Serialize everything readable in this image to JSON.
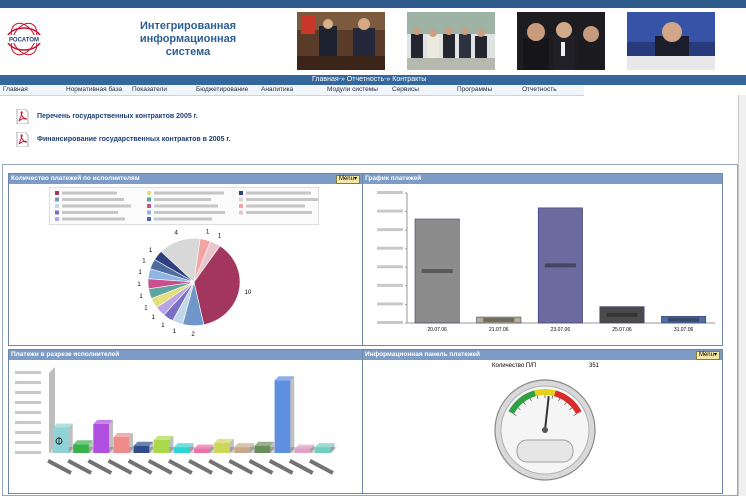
{
  "header": {
    "logo_text": "РОСАТОМ",
    "title": [
      "Интегрированная",
      "информационная",
      "система"
    ]
  },
  "crumbs": "Главная-» Отчетность-» Контракты",
  "menu": [
    "Главная",
    "Нормативная база",
    "Показатели",
    "Бюджетирование",
    "Аналитика",
    "Модули системы",
    "Сервисы",
    "Программы",
    "Отчетность"
  ],
  "documents": [
    "Перечень государственных контрактов 2005 г.",
    "Финансирование государственных контрактов в 2005 г."
  ],
  "panels": {
    "pie_title": "Количество платежей по исполнителям",
    "schedule_title": "График платежей",
    "executors_title": "Платежи в разрезе исполнителей",
    "info_title": "Информационная панель платежей",
    "menu_label": "Menu"
  },
  "info": {
    "count_label": "Количество П/П",
    "count_value": "351"
  },
  "colors": {
    "header_bar": "#35679c",
    "panel_header": "#7c9cc6",
    "link": "#1d3f72"
  },
  "chart_data": [
    {
      "type": "pie",
      "title": "Количество платежей по исполнителям",
      "slices": [
        {
          "value": 10,
          "color": "#a3365f"
        },
        {
          "value": 2,
          "color": "#6f97c9"
        },
        {
          "value": 1,
          "color": "#c3d7ec"
        },
        {
          "value": 1,
          "color": "#7b6fc4"
        },
        {
          "value": 1,
          "color": "#b9a5e4"
        },
        {
          "value": 1,
          "color": "#e2df7c"
        },
        {
          "value": 1,
          "color": "#5fa4a0"
        },
        {
          "value": 1,
          "color": "#c94f8f"
        },
        {
          "value": 1,
          "color": "#8fb5e3"
        },
        {
          "value": 1,
          "color": "#4c6ba0"
        },
        {
          "value": 1,
          "color": "#2f3f7d"
        },
        {
          "value": 4,
          "color": "#d8d8d8"
        },
        {
          "value": 1,
          "color": "#f2a4a4"
        },
        {
          "value": 1,
          "color": "#e9c6cc"
        }
      ],
      "labels": [
        "10",
        "2",
        "1",
        "1",
        "1",
        "1",
        "1",
        "1",
        "1",
        "1",
        "1",
        "4",
        "1",
        "1"
      ]
    },
    {
      "type": "bar",
      "title": "График платежей",
      "categories": [
        "20.07.06",
        "21.07.06",
        "23.07.06",
        "25.07.06",
        "31.07.06"
      ],
      "values": [
        14000000,
        800000,
        15500000,
        2200000,
        900000
      ],
      "colors": [
        "#8c8c8c",
        "#b9b091",
        "#6b6b9f",
        "#4b4b4b",
        "#4d6fa3"
      ],
      "ylim": [
        0,
        17500000
      ]
    },
    {
      "type": "bar",
      "title": "Платежи в разрезе исполнителей",
      "values": [
        35,
        12,
        40,
        22,
        10,
        18,
        8,
        6,
        14,
        8,
        10,
        100,
        6,
        8
      ],
      "colors": [
        "#8fd3d6",
        "#38b24a",
        "#b14fe0",
        "#f08b8b",
        "#2f4d8c",
        "#a9d94a",
        "#2fd3d3",
        "#f06fa8",
        "#cfd75a",
        "#c8a98a",
        "#6b8f5a",
        "#5e8fe0",
        "#e39fc9",
        "#6fd0c0"
      ],
      "ylim": [
        0,
        110
      ]
    },
    {
      "type": "gauge",
      "title": "Информационная панель платежей",
      "value": 0.55
    }
  ]
}
